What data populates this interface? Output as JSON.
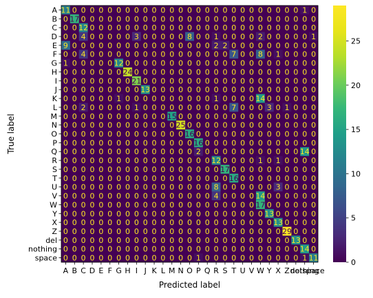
{
  "chart_data": {
    "type": "heatmap",
    "title": "",
    "xlabel": "Predicted label",
    "ylabel": "True label",
    "x_labels": [
      "A",
      "B",
      "C",
      "D",
      "E",
      "F",
      "G",
      "H",
      "I",
      "J",
      "K",
      "L",
      "M",
      "N",
      "O",
      "P",
      "Q",
      "R",
      "S",
      "T",
      "U",
      "V",
      "W",
      "Y",
      "X",
      "Z",
      "del",
      "nothing",
      "space"
    ],
    "y_labels": [
      "A",
      "B",
      "C",
      "D",
      "E",
      "F",
      "G",
      "H",
      "I",
      "J",
      "K",
      "L",
      "M",
      "N",
      "O",
      "P",
      "Q",
      "R",
      "S",
      "T",
      "U",
      "V",
      "W",
      "Y",
      "X",
      "Z",
      "del",
      "nothing",
      "space"
    ],
    "values": [
      [
        11,
        0,
        0,
        0,
        0,
        0,
        0,
        0,
        0,
        0,
        0,
        0,
        0,
        0,
        0,
        0,
        0,
        0,
        0,
        0,
        0,
        0,
        0,
        0,
        0,
        0,
        0,
        1,
        0
      ],
      [
        0,
        17,
        0,
        0,
        0,
        0,
        0,
        0,
        0,
        0,
        0,
        0,
        0,
        0,
        0,
        0,
        0,
        0,
        0,
        0,
        0,
        0,
        0,
        0,
        0,
        0,
        0,
        0,
        0
      ],
      [
        0,
        0,
        12,
        0,
        0,
        0,
        0,
        0,
        0,
        0,
        0,
        0,
        0,
        0,
        0,
        0,
        0,
        0,
        0,
        0,
        0,
        0,
        0,
        0,
        0,
        0,
        0,
        0,
        0
      ],
      [
        0,
        0,
        4,
        0,
        0,
        0,
        0,
        0,
        3,
        0,
        0,
        0,
        0,
        0,
        8,
        0,
        0,
        1,
        0,
        0,
        0,
        0,
        2,
        0,
        0,
        0,
        0,
        0,
        1
      ],
      [
        9,
        0,
        0,
        0,
        0,
        0,
        0,
        0,
        0,
        0,
        0,
        0,
        0,
        0,
        0,
        0,
        0,
        2,
        2,
        0,
        0,
        0,
        0,
        0,
        0,
        0,
        0,
        0,
        0
      ],
      [
        0,
        0,
        4,
        0,
        0,
        0,
        0,
        0,
        0,
        0,
        0,
        0,
        0,
        0,
        0,
        0,
        0,
        0,
        0,
        7,
        0,
        0,
        8,
        0,
        1,
        0,
        0,
        0,
        0
      ],
      [
        1,
        0,
        0,
        0,
        0,
        0,
        12,
        0,
        0,
        0,
        0,
        0,
        0,
        0,
        0,
        0,
        0,
        0,
        0,
        0,
        0,
        0,
        0,
        0,
        0,
        0,
        0,
        0,
        0
      ],
      [
        0,
        0,
        0,
        0,
        0,
        0,
        0,
        24,
        0,
        0,
        0,
        0,
        0,
        0,
        0,
        0,
        0,
        0,
        0,
        0,
        0,
        0,
        0,
        0,
        0,
        0,
        0,
        0,
        0
      ],
      [
        0,
        0,
        0,
        0,
        0,
        0,
        0,
        0,
        21,
        0,
        0,
        0,
        0,
        0,
        0,
        0,
        0,
        0,
        0,
        0,
        0,
        0,
        0,
        0,
        0,
        0,
        0,
        0,
        0
      ],
      [
        0,
        0,
        0,
        0,
        0,
        0,
        0,
        0,
        0,
        13,
        0,
        0,
        0,
        0,
        0,
        0,
        0,
        0,
        0,
        0,
        0,
        0,
        0,
        0,
        0,
        0,
        0,
        0,
        0
      ],
      [
        0,
        0,
        0,
        0,
        0,
        0,
        1,
        0,
        0,
        0,
        0,
        0,
        0,
        0,
        0,
        0,
        0,
        1,
        0,
        0,
        0,
        0,
        14,
        0,
        0,
        0,
        0,
        0,
        0
      ],
      [
        0,
        0,
        2,
        0,
        0,
        0,
        0,
        0,
        1,
        0,
        0,
        0,
        0,
        0,
        0,
        0,
        0,
        0,
        0,
        7,
        0,
        0,
        0,
        3,
        0,
        1,
        0,
        0,
        0
      ],
      [
        0,
        0,
        0,
        0,
        0,
        0,
        0,
        0,
        0,
        0,
        0,
        0,
        15,
        0,
        0,
        0,
        0,
        0,
        0,
        0,
        0,
        0,
        0,
        0,
        0,
        0,
        0,
        0,
        0
      ],
      [
        0,
        0,
        0,
        0,
        0,
        0,
        0,
        0,
        0,
        0,
        0,
        0,
        0,
        25,
        0,
        0,
        0,
        0,
        0,
        0,
        0,
        0,
        0,
        0,
        0,
        0,
        0,
        0,
        0
      ],
      [
        0,
        0,
        0,
        0,
        0,
        0,
        0,
        0,
        0,
        0,
        0,
        0,
        0,
        0,
        16,
        0,
        0,
        0,
        0,
        0,
        0,
        0,
        0,
        0,
        0,
        0,
        0,
        0,
        0
      ],
      [
        0,
        0,
        0,
        0,
        0,
        0,
        0,
        0,
        0,
        0,
        0,
        0,
        0,
        0,
        0,
        16,
        0,
        0,
        0,
        0,
        0,
        0,
        0,
        0,
        0,
        0,
        0,
        0,
        0
      ],
      [
        0,
        0,
        0,
        0,
        0,
        0,
        0,
        0,
        0,
        0,
        0,
        0,
        0,
        0,
        0,
        2,
        0,
        0,
        0,
        0,
        0,
        0,
        0,
        0,
        0,
        0,
        0,
        14,
        0
      ],
      [
        0,
        0,
        0,
        0,
        0,
        0,
        0,
        0,
        0,
        0,
        0,
        0,
        0,
        0,
        0,
        0,
        0,
        12,
        0,
        0,
        0,
        0,
        1,
        0,
        1,
        0,
        0,
        0,
        0
      ],
      [
        0,
        0,
        0,
        0,
        0,
        0,
        0,
        0,
        0,
        0,
        0,
        0,
        0,
        0,
        0,
        0,
        0,
        0,
        17,
        0,
        0,
        0,
        0,
        0,
        0,
        0,
        0,
        0,
        0
      ],
      [
        0,
        0,
        0,
        0,
        0,
        0,
        0,
        0,
        0,
        0,
        0,
        0,
        0,
        0,
        0,
        0,
        0,
        0,
        0,
        16,
        0,
        0,
        0,
        0,
        0,
        0,
        0,
        0,
        0
      ],
      [
        0,
        0,
        0,
        0,
        0,
        0,
        0,
        0,
        0,
        0,
        0,
        0,
        0,
        0,
        0,
        0,
        0,
        8,
        0,
        0,
        0,
        0,
        0,
        0,
        3,
        0,
        0,
        0,
        0
      ],
      [
        0,
        0,
        0,
        0,
        0,
        0,
        0,
        0,
        0,
        0,
        0,
        0,
        0,
        0,
        0,
        0,
        0,
        4,
        0,
        0,
        0,
        0,
        14,
        0,
        0,
        0,
        0,
        0,
        0
      ],
      [
        0,
        0,
        0,
        0,
        0,
        0,
        0,
        0,
        0,
        0,
        0,
        0,
        0,
        0,
        0,
        0,
        0,
        0,
        0,
        0,
        0,
        0,
        17,
        0,
        0,
        0,
        0,
        0,
        0
      ],
      [
        0,
        0,
        0,
        0,
        0,
        0,
        0,
        0,
        0,
        0,
        0,
        0,
        0,
        0,
        0,
        0,
        0,
        0,
        0,
        0,
        0,
        0,
        0,
        13,
        0,
        0,
        0,
        0,
        0
      ],
      [
        0,
        0,
        0,
        0,
        0,
        0,
        0,
        0,
        0,
        0,
        0,
        0,
        0,
        0,
        0,
        0,
        0,
        0,
        0,
        0,
        0,
        0,
        0,
        0,
        13,
        0,
        0,
        0,
        0
      ],
      [
        0,
        0,
        0,
        0,
        0,
        0,
        0,
        0,
        0,
        0,
        0,
        0,
        0,
        0,
        0,
        0,
        0,
        0,
        0,
        0,
        0,
        0,
        0,
        0,
        0,
        29,
        0,
        0,
        0
      ],
      [
        0,
        0,
        0,
        0,
        0,
        0,
        0,
        0,
        0,
        0,
        0,
        0,
        0,
        0,
        0,
        0,
        0,
        0,
        0,
        0,
        0,
        0,
        0,
        0,
        0,
        0,
        13,
        0,
        0
      ],
      [
        0,
        0,
        0,
        0,
        0,
        0,
        0,
        0,
        0,
        0,
        0,
        0,
        0,
        0,
        0,
        0,
        0,
        0,
        0,
        0,
        0,
        0,
        0,
        0,
        0,
        0,
        0,
        14,
        0
      ],
      [
        0,
        0,
        0,
        0,
        0,
        0,
        0,
        0,
        0,
        0,
        0,
        0,
        0,
        0,
        0,
        1,
        0,
        0,
        0,
        0,
        0,
        0,
        0,
        0,
        0,
        0,
        0,
        1,
        11
      ]
    ],
    "colorbar": {
      "colormap": "viridis",
      "vmin": 0,
      "vmax": 29,
      "ticks": [
        0,
        5,
        10,
        15,
        20,
        25
      ]
    },
    "colors": {
      "low": "#440154",
      "high": "#fde725",
      "text_on_dark": "#fde725",
      "text_on_light": "#440154"
    }
  }
}
